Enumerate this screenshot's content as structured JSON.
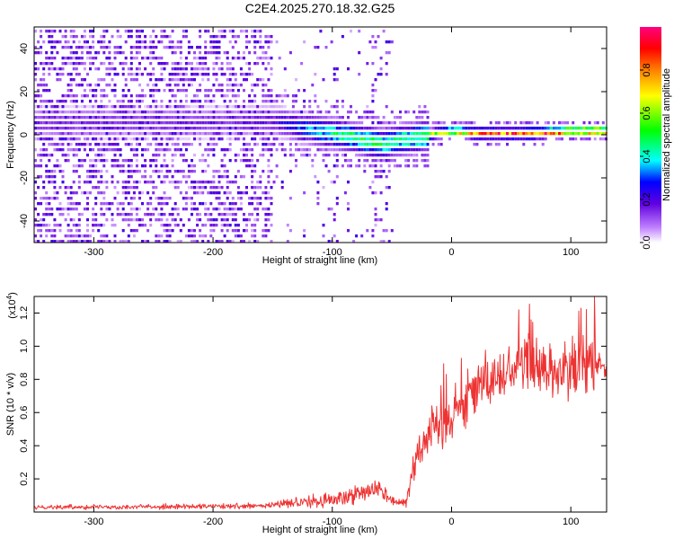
{
  "chart_data": [
    {
      "type": "heatmap",
      "title": "C2E4.2025.270.18.32.G25",
      "xlabel": "Height of straight line (km)",
      "ylabel": "Frequency (Hz)",
      "xlim": [
        -350,
        130
      ],
      "ylim": [
        -50,
        50
      ],
      "xticks": [
        -300,
        -200,
        -100,
        0,
        100
      ],
      "yticks": [
        -40,
        -20,
        0,
        20,
        40
      ],
      "colorbar": {
        "label": "Normalized spectral amplitude",
        "range": [
          0.0,
          1.0
        ],
        "ticks": [
          "0.0",
          "0.2",
          "0.4",
          "0.6",
          "0.8"
        ],
        "colors": [
          "#ffffff",
          "#c080ff",
          "#6000e0",
          "#0000ff",
          "#00ffff",
          "#00ff00",
          "#ffff00",
          "#ff8000",
          "#ff0000",
          "#ff0080"
        ]
      },
      "noise_region": {
        "x_from": -350,
        "x_to": -150,
        "amplitude": 0.15
      },
      "signal_track": [
        {
          "x": -200,
          "freq": 5,
          "amp": 0.15
        },
        {
          "x": -150,
          "freq": 6,
          "amp": 0.18
        },
        {
          "x": -130,
          "freq": 3,
          "amp": 0.3
        },
        {
          "x": -110,
          "freq": 1,
          "amp": 0.4
        },
        {
          "x": -90,
          "freq": -1,
          "amp": 0.45
        },
        {
          "x": -75,
          "freq": -3,
          "amp": 0.5
        },
        {
          "x": -60,
          "freq": -5,
          "amp": 0.5
        },
        {
          "x": -45,
          "freq": -3,
          "amp": 0.45
        },
        {
          "x": -30,
          "freq": -2,
          "amp": 0.5
        },
        {
          "x": -15,
          "freq": 0,
          "amp": 0.65
        },
        {
          "x": 0,
          "freq": 1,
          "amp": 0.7
        },
        {
          "x": 20,
          "freq": 0,
          "amp": 0.85
        },
        {
          "x": 60,
          "freq": 0,
          "amp": 0.9
        },
        {
          "x": 100,
          "freq": 1,
          "amp": 0.9
        },
        {
          "x": 130,
          "freq": 1,
          "amp": 0.9
        }
      ]
    },
    {
      "type": "line",
      "title": "",
      "xlabel": "Height of straight line (km)",
      "ylabel": "SNR (10 * v/v)",
      "multiplier_base": "(x10",
      "multiplier_exp": "4",
      "multiplier_close": ")",
      "xlim": [
        -350,
        130
      ],
      "ylim": [
        0,
        1.3
      ],
      "xticks": [
        -300,
        -200,
        -100,
        0,
        100
      ],
      "yticks": [
        0.2,
        0.4,
        0.6,
        0.8,
        1.0,
        1.2
      ],
      "ytick_labels": [
        "0.2",
        "0.4",
        "0.6",
        "0.8",
        "1.0",
        "1.2"
      ],
      "series": [
        {
          "name": "SNR",
          "color": "#ee3333",
          "envelope": [
            {
              "x": -350,
              "mean": 0.03,
              "spread": 0.02
            },
            {
              "x": -160,
              "mean": 0.035,
              "spread": 0.025
            },
            {
              "x": -130,
              "mean": 0.06,
              "spread": 0.05
            },
            {
              "x": -100,
              "mean": 0.07,
              "spread": 0.07
            },
            {
              "x": -80,
              "mean": 0.12,
              "spread": 0.1
            },
            {
              "x": -60,
              "mean": 0.14,
              "spread": 0.1
            },
            {
              "x": -50,
              "mean": 0.07,
              "spread": 0.05
            },
            {
              "x": -38,
              "mean": 0.06,
              "spread": 0.04
            },
            {
              "x": -30,
              "mean": 0.35,
              "spread": 0.2
            },
            {
              "x": -15,
              "mean": 0.5,
              "spread": 0.25
            },
            {
              "x": 0,
              "mean": 0.6,
              "spread": 0.25
            },
            {
              "x": 20,
              "mean": 0.75,
              "spread": 0.25
            },
            {
              "x": 60,
              "mean": 0.9,
              "spread": 0.25
            },
            {
              "x": 100,
              "mean": 0.85,
              "spread": 0.3
            },
            {
              "x": 130,
              "mean": 0.9,
              "spread": 0.3
            }
          ]
        }
      ]
    }
  ]
}
